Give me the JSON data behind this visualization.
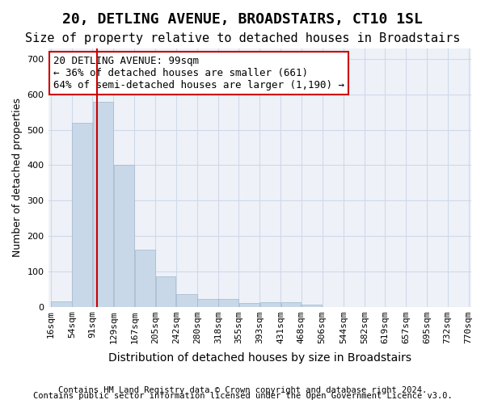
{
  "title1": "20, DETLING AVENUE, BROADSTAIRS, CT10 1SL",
  "title2": "Size of property relative to detached houses in Broadstairs",
  "xlabel": "Distribution of detached houses by size in Broadstairs",
  "ylabel": "Number of detached properties",
  "bar_values": [
    15,
    520,
    580,
    400,
    160,
    85,
    35,
    22,
    22,
    10,
    12,
    12,
    5,
    0,
    0,
    0,
    0,
    0,
    0
  ],
  "bin_edges": [
    16,
    54,
    91,
    129,
    167,
    205,
    242,
    280,
    318,
    355,
    393,
    431,
    468,
    506,
    544,
    582,
    619,
    657,
    695,
    732
  ],
  "tick_labels": [
    "16sqm",
    "54sqm",
    "91sqm",
    "129sqm",
    "167sqm",
    "205sqm",
    "242sqm",
    "280sqm",
    "318sqm",
    "355sqm",
    "393sqm",
    "431sqm",
    "468sqm",
    "506sqm",
    "544sqm",
    "582sqm",
    "619sqm",
    "657sqm",
    "695sqm",
    "732sqm",
    "770sqm"
  ],
  "bar_color": "#c8d8e8",
  "bar_edge_color": "#a0b8cc",
  "vline_x": 99,
  "vline_color": "#cc0000",
  "annotation_text": "20 DETLING AVENUE: 99sqm\n← 36% of detached houses are smaller (661)\n64% of semi-detached houses are larger (1,190) →",
  "annotation_box_color": "#ffffff",
  "annotation_box_edge": "#cc0000",
  "ylim": [
    0,
    730
  ],
  "yticks": [
    0,
    100,
    200,
    300,
    400,
    500,
    600,
    700
  ],
  "grid_color": "#d0d8e8",
  "background_color": "#eef2f8",
  "footnote1": "Contains HM Land Registry data © Crown copyright and database right 2024.",
  "footnote2": "Contains public sector information licensed under the Open Government Licence v3.0.",
  "title1_fontsize": 13,
  "title2_fontsize": 11,
  "xlabel_fontsize": 10,
  "ylabel_fontsize": 9,
  "tick_fontsize": 8,
  "annotation_fontsize": 9,
  "footnote_fontsize": 7.5
}
